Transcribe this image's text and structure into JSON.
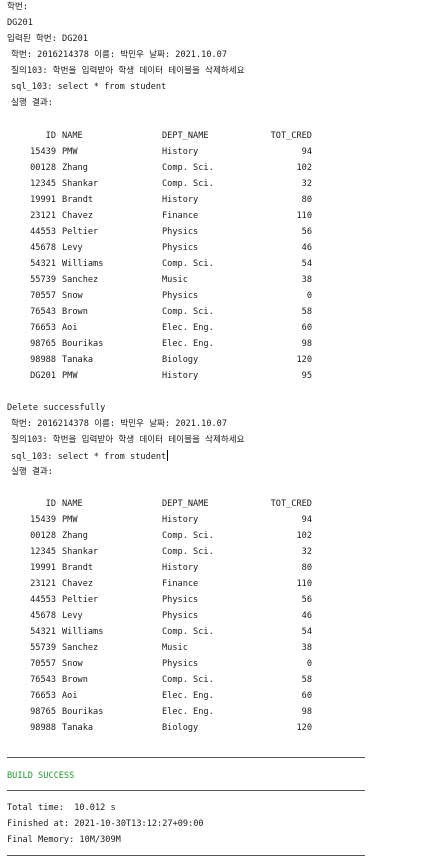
{
  "lines": {
    "student_id_prompt": "학번:",
    "input_echo": "DG201",
    "entered_id": "입력된 학번: DG201"
  },
  "run1": {
    "header": "학번: 2016214378 이름: 박민우 날짜: 2021.10.07",
    "task": "질의103: 학번을 입력받아 학생 데이터 테이블을 삭제하세요",
    "sql": "sql_103: select * from student",
    "result_label": "실행 결과:"
  },
  "table1": {
    "headers": [
      "ID",
      "NAME",
      "DEPT_NAME",
      "TOT_CRED"
    ],
    "rows": [
      [
        "15439",
        "PMW",
        "History",
        "94"
      ],
      [
        "00128",
        "Zhang",
        "Comp. Sci.",
        "102"
      ],
      [
        "12345",
        "Shankar",
        "Comp. Sci.",
        "32"
      ],
      [
        "19991",
        "Brandt",
        "History",
        "80"
      ],
      [
        "23121",
        "Chavez",
        "Finance",
        "110"
      ],
      [
        "44553",
        "Peltier",
        "Physics",
        "56"
      ],
      [
        "45678",
        "Levy",
        "Physics",
        "46"
      ],
      [
        "54321",
        "Williams",
        "Comp. Sci.",
        "54"
      ],
      [
        "55739",
        "Sanchez",
        "Music",
        "38"
      ],
      [
        "70557",
        "Snow",
        "Physics",
        "0"
      ],
      [
        "76543",
        "Brown",
        "Comp. Sci.",
        "58"
      ],
      [
        "76653",
        "Aoi",
        "Elec. Eng.",
        "60"
      ],
      [
        "98765",
        "Bourikas",
        "Elec. Eng.",
        "98"
      ],
      [
        "98988",
        "Tanaka",
        "Biology",
        "120"
      ],
      [
        "DG201",
        "PMW",
        "History",
        "95"
      ]
    ]
  },
  "delete_message": "Delete successfully",
  "run2": {
    "header": "학번: 2016214378 이름: 박민우 날짜: 2021.10.07",
    "task": "질의103: 학번을 입력받아 학생 데이터 테이블을 삭제하세요",
    "sql": "sql_103: select * from student",
    "result_label": "실행 결과:"
  },
  "table2": {
    "headers": [
      "ID",
      "NAME",
      "DEPT_NAME",
      "TOT_CRED"
    ],
    "rows": [
      [
        "15439",
        "PMW",
        "History",
        "94"
      ],
      [
        "00128",
        "Zhang",
        "Comp. Sci.",
        "102"
      ],
      [
        "12345",
        "Shankar",
        "Comp. Sci.",
        "32"
      ],
      [
        "19991",
        "Brandt",
        "History",
        "80"
      ],
      [
        "23121",
        "Chavez",
        "Finance",
        "110"
      ],
      [
        "44553",
        "Peltier",
        "Physics",
        "56"
      ],
      [
        "45678",
        "Levy",
        "Physics",
        "46"
      ],
      [
        "54321",
        "Williams",
        "Comp. Sci.",
        "54"
      ],
      [
        "55739",
        "Sanchez",
        "Music",
        "38"
      ],
      [
        "70557",
        "Snow",
        "Physics",
        "0"
      ],
      [
        "76543",
        "Brown",
        "Comp. Sci.",
        "58"
      ],
      [
        "76653",
        "Aoi",
        "Elec. Eng.",
        "60"
      ],
      [
        "98765",
        "Bourikas",
        "Elec. Eng.",
        "98"
      ],
      [
        "98988",
        "Tanaka",
        "Biology",
        "120"
      ]
    ]
  },
  "build": {
    "status": "BUILD SUCCESS",
    "status_color": "#1f9a2a",
    "total_time": "Total time:  10.012 s",
    "finished_at": "Finished at: 2021-10-30T13:12:27+09:00",
    "final_memory": "Final Memory: 10M/309M"
  }
}
